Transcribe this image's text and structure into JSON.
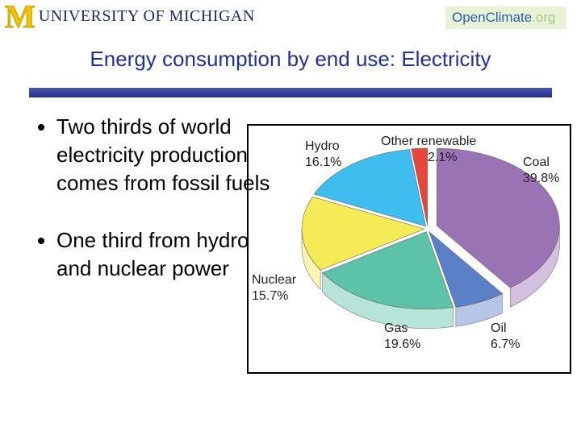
{
  "header": {
    "university": "UNIVERSITY OF MICHIGAN",
    "logo_letter": "M",
    "partner": "OpenClimate",
    "partner_suffix": ".org"
  },
  "slide": {
    "title": "Energy consumption by end use: Electricity",
    "bullets": [
      "Two thirds of world electricity production comes from fossil fuels",
      "One third from hydro and nuclear power"
    ]
  },
  "chart_data": {
    "type": "pie",
    "categories": [
      "Coal",
      "Oil",
      "Gas",
      "Nuclear",
      "Hydro",
      "Other renewable"
    ],
    "values": [
      39.8,
      6.7,
      19.6,
      15.7,
      16.1,
      2.1
    ],
    "value_labels": [
      "39.8%",
      "6.7%",
      "19.6%",
      "15.7%",
      "16.1%",
      "2.1%"
    ],
    "colors": [
      "#9a73b5",
      "#5b80c8",
      "#5cc2a8",
      "#f5ec55",
      "#3fbdee",
      "#e8463a"
    ]
  }
}
